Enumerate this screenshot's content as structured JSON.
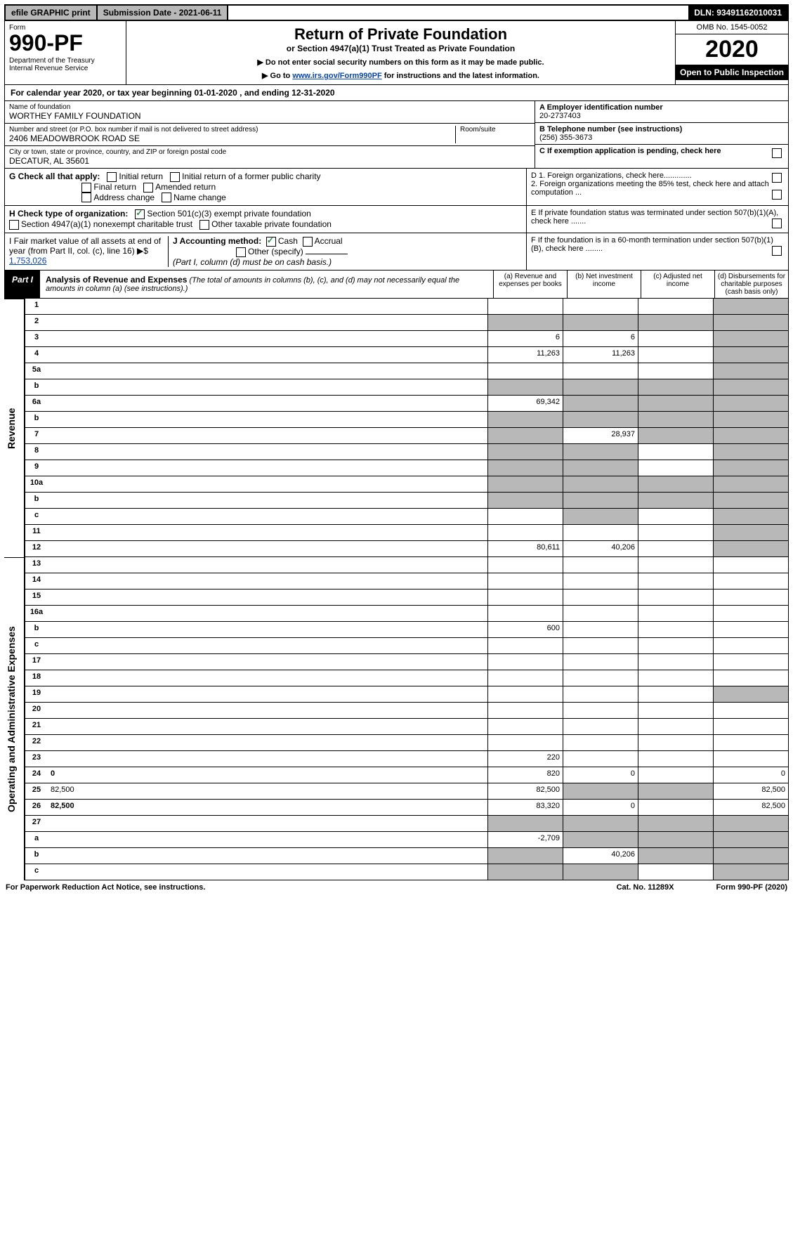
{
  "topbar": {
    "efile": "efile GRAPHIC print",
    "submission": "Submission Date - 2021-06-11",
    "dln": "DLN: 93491162010031"
  },
  "header": {
    "form": "Form",
    "number": "990-PF",
    "dept": "Department of the Treasury\nInternal Revenue Service",
    "title": "Return of Private Foundation",
    "subtitle": "or Section 4947(a)(1) Trust Treated as Private Foundation",
    "note1": "▶ Do not enter social security numbers on this form as it may be made public.",
    "note2_pre": "▶ Go to ",
    "note2_link": "www.irs.gov/Form990PF",
    "note2_post": " for instructions and the latest information.",
    "omb": "OMB No. 1545-0052",
    "year": "2020",
    "open": "Open to Public Inspection"
  },
  "cal": "For calendar year 2020, or tax year beginning 01-01-2020                         , and ending 12-31-2020",
  "id": {
    "name_lbl": "Name of foundation",
    "name": "WORTHEY FAMILY FOUNDATION",
    "addr_lbl": "Number and street (or P.O. box number if mail is not delivered to street address)",
    "addr": "2406 MEADOWBROOK ROAD SE",
    "room_lbl": "Room/suite",
    "city_lbl": "City or town, state or province, country, and ZIP or foreign postal code",
    "city": "DECATUR, AL  35601",
    "a_lbl": "A Employer identification number",
    "a_val": "20-2737403",
    "b_lbl": "B Telephone number (see instructions)",
    "b_val": "(256) 355-3673",
    "c_lbl": "C If exemption application is pending, check here"
  },
  "g": {
    "label": "G Check all that apply:",
    "o1": "Initial return",
    "o2": "Initial return of a former public charity",
    "o3": "Final return",
    "o4": "Amended return",
    "o5": "Address change",
    "o6": "Name change"
  },
  "d": {
    "d1": "D 1. Foreign organizations, check here.............",
    "d2": "2. Foreign organizations meeting the 85% test, check here and attach computation ..."
  },
  "h": {
    "label": "H Check type of organization:",
    "o1": "Section 501(c)(3) exempt private foundation",
    "o2": "Section 4947(a)(1) nonexempt charitable trust",
    "o3": "Other taxable private foundation"
  },
  "e": "E If private foundation status was terminated under section 507(b)(1)(A), check here .......",
  "i": {
    "label": "I Fair market value of all assets at end of year (from Part II, col. (c), line 16) ▶$ ",
    "val": "1,753,026"
  },
  "j": {
    "label": "J Accounting method:",
    "cash": "Cash",
    "accrual": "Accrual",
    "other": "Other (specify)",
    "note": "(Part I, column (d) must be on cash basis.)"
  },
  "f": "F If the foundation is in a 60-month termination under section 507(b)(1)(B), check here ........",
  "part1": {
    "label": "Part I",
    "title": "Analysis of Revenue and Expenses",
    "note": "(The total of amounts in columns (b), (c), and (d) may not necessarily equal the amounts in column (a) (see instructions).)",
    "col_a": "(a)   Revenue and expenses per books",
    "col_b": "(b)  Net investment income",
    "col_c": "(c)  Adjusted net income",
    "col_d": "(d)  Disbursements for charitable purposes (cash basis only)"
  },
  "sections": {
    "revenue": "Revenue",
    "expenses": "Operating and Administrative Expenses"
  },
  "rows": [
    {
      "n": "1",
      "d": "",
      "a": "",
      "b": "",
      "c": "",
      "sh": [
        "d"
      ]
    },
    {
      "n": "2",
      "d": "",
      "a": "",
      "b": "",
      "c": "",
      "sh": [
        "a",
        "b",
        "c",
        "d"
      ]
    },
    {
      "n": "3",
      "d": "",
      "a": "6",
      "b": "6",
      "c": "",
      "sh": [
        "d"
      ]
    },
    {
      "n": "4",
      "d": "",
      "a": "11,263",
      "b": "11,263",
      "c": "",
      "sh": [
        "d"
      ]
    },
    {
      "n": "5a",
      "d": "",
      "a": "",
      "b": "",
      "c": "",
      "sh": [
        "d"
      ]
    },
    {
      "n": "b",
      "d": "",
      "a": "",
      "b": "",
      "c": "",
      "sh": [
        "a",
        "b",
        "c",
        "d"
      ]
    },
    {
      "n": "6a",
      "d": "",
      "a": "69,342",
      "b": "",
      "c": "",
      "sh": [
        "b",
        "c",
        "d"
      ]
    },
    {
      "n": "b",
      "d": "",
      "a": "",
      "b": "",
      "c": "",
      "sh": [
        "a",
        "b",
        "c",
        "d"
      ]
    },
    {
      "n": "7",
      "d": "",
      "a": "",
      "b": "28,937",
      "c": "",
      "sh": [
        "a",
        "c",
        "d"
      ]
    },
    {
      "n": "8",
      "d": "",
      "a": "",
      "b": "",
      "c": "",
      "sh": [
        "a",
        "b",
        "d"
      ]
    },
    {
      "n": "9",
      "d": "",
      "a": "",
      "b": "",
      "c": "",
      "sh": [
        "a",
        "b",
        "d"
      ]
    },
    {
      "n": "10a",
      "d": "",
      "a": "",
      "b": "",
      "c": "",
      "sh": [
        "a",
        "b",
        "c",
        "d"
      ]
    },
    {
      "n": "b",
      "d": "",
      "a": "",
      "b": "",
      "c": "",
      "sh": [
        "a",
        "b",
        "c",
        "d"
      ]
    },
    {
      "n": "c",
      "d": "",
      "a": "",
      "b": "",
      "c": "",
      "sh": [
        "b",
        "d"
      ]
    },
    {
      "n": "11",
      "d": "",
      "a": "",
      "b": "",
      "c": "",
      "sh": [
        "d"
      ]
    },
    {
      "n": "12",
      "d": "",
      "bold": true,
      "a": "80,611",
      "b": "40,206",
      "c": "",
      "sh": [
        "d"
      ]
    }
  ],
  "erows": [
    {
      "n": "13",
      "d": "",
      "a": "",
      "b": "",
      "c": ""
    },
    {
      "n": "14",
      "d": "",
      "a": "",
      "b": "",
      "c": ""
    },
    {
      "n": "15",
      "d": "",
      "a": "",
      "b": "",
      "c": ""
    },
    {
      "n": "16a",
      "d": "",
      "a": "",
      "b": "",
      "c": ""
    },
    {
      "n": "b",
      "d": "",
      "a": "600",
      "b": "",
      "c": ""
    },
    {
      "n": "c",
      "d": "",
      "a": "",
      "b": "",
      "c": ""
    },
    {
      "n": "17",
      "d": "",
      "a": "",
      "b": "",
      "c": ""
    },
    {
      "n": "18",
      "d": "",
      "a": "",
      "b": "",
      "c": ""
    },
    {
      "n": "19",
      "d": "",
      "a": "",
      "b": "",
      "c": "",
      "sh": [
        "d"
      ]
    },
    {
      "n": "20",
      "d": "",
      "a": "",
      "b": "",
      "c": ""
    },
    {
      "n": "21",
      "d": "",
      "a": "",
      "b": "",
      "c": ""
    },
    {
      "n": "22",
      "d": "",
      "a": "",
      "b": "",
      "c": ""
    },
    {
      "n": "23",
      "d": "",
      "a": "220",
      "b": "",
      "c": ""
    },
    {
      "n": "24",
      "d": "0",
      "bold": true,
      "a": "820",
      "b": "0",
      "c": ""
    },
    {
      "n": "25",
      "d": "82,500",
      "a": "82,500",
      "b": "",
      "c": "",
      "sh": [
        "b",
        "c"
      ]
    },
    {
      "n": "26",
      "d": "82,500",
      "bold": true,
      "a": "83,320",
      "b": "0",
      "c": ""
    },
    {
      "n": "27",
      "d": "",
      "a": "",
      "b": "",
      "c": "",
      "sh": [
        "a",
        "b",
        "c",
        "d"
      ]
    },
    {
      "n": "a",
      "d": "",
      "bold": true,
      "a": "-2,709",
      "b": "",
      "c": "",
      "sh": [
        "b",
        "c",
        "d"
      ]
    },
    {
      "n": "b",
      "d": "",
      "bold": true,
      "a": "",
      "b": "40,206",
      "c": "",
      "sh": [
        "a",
        "c",
        "d"
      ]
    },
    {
      "n": "c",
      "d": "",
      "bold": true,
      "a": "",
      "b": "",
      "c": "",
      "sh": [
        "a",
        "b",
        "d"
      ]
    }
  ],
  "footer": {
    "left": "For Paperwork Reduction Act Notice, see instructions.",
    "mid": "Cat. No. 11289X",
    "right": "Form 990-PF (2020)"
  }
}
